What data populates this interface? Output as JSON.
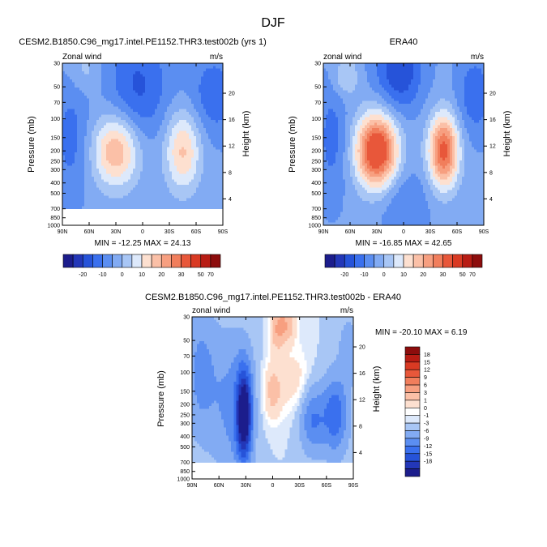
{
  "figure": {
    "title": "DJF"
  },
  "colors": {
    "no_data": "#ffffff",
    "frame": "#000000"
  },
  "chart_data": [
    {
      "type": "heatmap",
      "id": "model",
      "title": "CESM2.B1850.C96_mg17.intel.PE1152.THR3.test002b (yrs 1)",
      "left_string": "Zonal wind",
      "right_string": "m/s",
      "xlabel": "",
      "ylabel": "Pressure (mb)",
      "ylabel_right": "Height (km)",
      "x_ticks": [
        "90N",
        "60N",
        "30N",
        "0",
        "30S",
        "60S",
        "90S"
      ],
      "y_ticks": [
        "30",
        "50",
        "70",
        "100",
        "150",
        "200",
        "250",
        "300",
        "400",
        "500",
        "700",
        "850",
        "1000"
      ],
      "y_ticks_right": [
        "20",
        "16",
        "12",
        "8",
        "4"
      ],
      "xlim": [
        90,
        -90
      ],
      "ylim_mb": [
        1000,
        30
      ],
      "stats": "MIN = -12.25   MAX =  24.13",
      "levels": [
        -25,
        -20,
        -15,
        -10,
        -5,
        0,
        5,
        10,
        15,
        20,
        25,
        30,
        40,
        50,
        60,
        70
      ],
      "features": [
        {
          "lat": 30,
          "p": 200,
          "value": 24,
          "sx": 18,
          "sy": 0.55
        },
        {
          "lat": -45,
          "p": 200,
          "value": 20,
          "sx": 14,
          "sy": 0.6
        },
        {
          "lat": 65,
          "p": 35,
          "value": 6,
          "sx": 12,
          "sy": 0.35
        },
        {
          "lat": 5,
          "p": 50,
          "value": -12,
          "sx": 24,
          "sy": 0.8
        },
        {
          "lat": 80,
          "p": 150,
          "value": -8,
          "sx": 14,
          "sy": 0.9
        },
        {
          "lat": -80,
          "p": 60,
          "value": -10,
          "sx": 18,
          "sy": 0.6
        }
      ],
      "base": -4,
      "missing_below_mb": 720,
      "missing_lat_range": [
        42,
        28
      ],
      "missing_top_mb": 640
    },
    {
      "type": "heatmap",
      "id": "obs",
      "title": "ERA40",
      "left_string": "zonal wind",
      "right_string": "m/s",
      "xlabel": "",
      "ylabel": "Pressure (mb)",
      "ylabel_right": "Height (km)",
      "x_ticks": [
        "90N",
        "60N",
        "30N",
        "0",
        "30S",
        "60S",
        "90S"
      ],
      "y_ticks": [
        "30",
        "50",
        "70",
        "100",
        "150",
        "200",
        "250",
        "300",
        "400",
        "500",
        "700",
        "850",
        "1000"
      ],
      "y_ticks_right": [
        "20",
        "16",
        "12",
        "8",
        "4"
      ],
      "xlim": [
        90,
        -90
      ],
      "ylim_mb": [
        1000,
        30
      ],
      "stats": "MIN = -16.85   MAX =  42.65",
      "levels": [
        -25,
        -20,
        -15,
        -10,
        -5,
        0,
        5,
        10,
        15,
        20,
        25,
        30,
        40,
        50,
        60,
        70
      ],
      "features": [
        {
          "lat": 30,
          "p": 200,
          "value": 44,
          "sx": 16,
          "sy": 0.55
        },
        {
          "lat": -45,
          "p": 200,
          "value": 36,
          "sx": 12,
          "sy": 0.55
        },
        {
          "lat": 65,
          "p": 40,
          "value": 10,
          "sx": 10,
          "sy": 0.3
        },
        {
          "lat": 5,
          "p": 35,
          "value": -16,
          "sx": 18,
          "sy": 0.6
        },
        {
          "lat": 80,
          "p": 150,
          "value": -8,
          "sx": 12,
          "sy": 0.9
        },
        {
          "lat": -80,
          "p": 60,
          "value": -10,
          "sx": 14,
          "sy": 0.6
        },
        {
          "lat": 0,
          "p": 600,
          "value": -6,
          "sx": 20,
          "sy": 0.5
        }
      ],
      "base": -4,
      "missing_below_mb": null
    },
    {
      "type": "heatmap",
      "id": "diff",
      "title": "CESM2.B1850.C96_mg17.intel.PE1152.THR3.test002b - ERA40",
      "left_string": "zonal wind",
      "right_string": "m/s",
      "xlabel": "",
      "ylabel": "Pressure (mb)",
      "ylabel_right": "Height (km)",
      "x_ticks": [
        "90N",
        "60N",
        "30N",
        "0",
        "30S",
        "60S",
        "90S"
      ],
      "y_ticks": [
        "30",
        "50",
        "70",
        "100",
        "150",
        "200",
        "250",
        "300",
        "400",
        "500",
        "700",
        "850",
        "1000"
      ],
      "y_ticks_right": [
        "20",
        "16",
        "12",
        "8",
        "4"
      ],
      "xlim": [
        90,
        -90
      ],
      "ylim_mb": [
        1000,
        30
      ],
      "stats": "MIN = -20.10   MAX =    6.19",
      "levels": [
        -18,
        -15,
        -12,
        -9,
        -6,
        -3,
        -1,
        0,
        1,
        3,
        6,
        9,
        12,
        15,
        18
      ],
      "features": [
        {
          "lat": 32,
          "p": 250,
          "value": -20,
          "sx": 6,
          "sy": 0.7
        },
        {
          "lat": 45,
          "p": 200,
          "value": -6,
          "sx": 16,
          "sy": 1.1
        },
        {
          "lat": -5,
          "p": 40,
          "value": 5,
          "sx": 6,
          "sy": 0.35
        },
        {
          "lat": -15,
          "p": 35,
          "value": 6,
          "sx": 8,
          "sy": 0.3
        },
        {
          "lat": 0,
          "p": 150,
          "value": 5,
          "sx": 8,
          "sy": 0.45
        },
        {
          "lat": -25,
          "p": 120,
          "value": 3,
          "sx": 12,
          "sy": 0.5
        },
        {
          "lat": -45,
          "p": 280,
          "value": -8,
          "sx": 10,
          "sy": 0.5
        },
        {
          "lat": -70,
          "p": 250,
          "value": -10,
          "sx": 10,
          "sy": 0.6
        },
        {
          "lat": 80,
          "p": 100,
          "value": -6,
          "sx": 12,
          "sy": 1.0
        },
        {
          "lat": -85,
          "p": 60,
          "value": -4,
          "sx": 8,
          "sy": 0.5
        }
      ],
      "base": -1,
      "missing_below_mb": 720,
      "missing_lat_range": [
        42,
        28
      ],
      "missing_top_mb": 640
    }
  ],
  "colorbars": {
    "horizontal": {
      "colors": [
        "#1c1d8c",
        "#2337b8",
        "#2653d9",
        "#3a70ee",
        "#5b8ef1",
        "#82abf3",
        "#a8c6f5",
        "#dde9fb",
        "#fde0d0",
        "#fbc0a7",
        "#f79f80",
        "#f17e5c",
        "#e8573a",
        "#d93a23",
        "#b81c14",
        "#8d0d0d"
      ],
      "labels": [
        "-20",
        "-10",
        "0",
        "10",
        "20",
        "30",
        "50",
        "70"
      ]
    },
    "vertical": {
      "colors": [
        "#8d0d0d",
        "#b81c14",
        "#d93a23",
        "#e8573a",
        "#f17e5c",
        "#f79f80",
        "#fbc0a7",
        "#fde0d0",
        "#ffffff",
        "#dde9fb",
        "#a8c6f5",
        "#82abf3",
        "#5b8ef1",
        "#3a70ee",
        "#2653d9",
        "#2337b8",
        "#1c1d8c"
      ],
      "labels": [
        "18",
        "15",
        "12",
        "9",
        "6",
        "3",
        "1",
        "0",
        "-1",
        "-3",
        "-6",
        "-9",
        "-12",
        "-15",
        "-18"
      ]
    }
  }
}
